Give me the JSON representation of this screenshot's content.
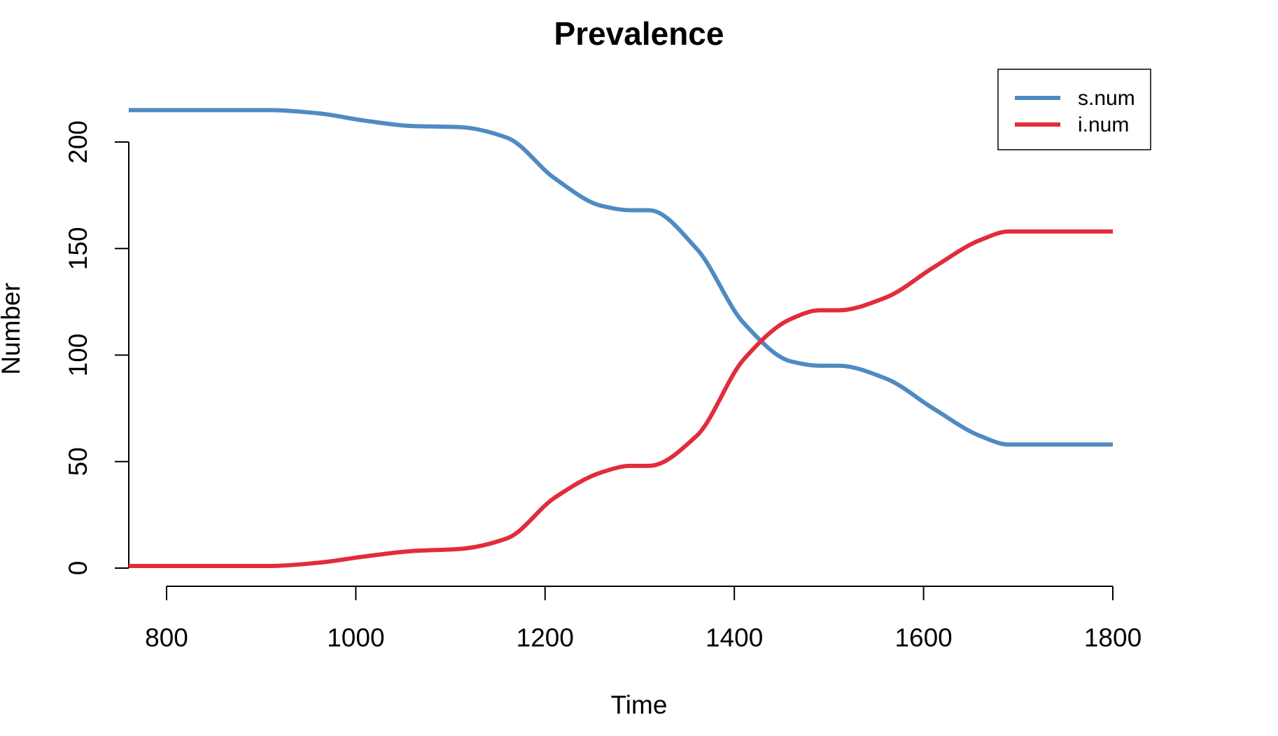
{
  "chart_data": {
    "type": "line",
    "title": "Prevalence",
    "xlabel": "Time",
    "ylabel": "Number",
    "xlim": [
      760,
      1800
    ],
    "ylim": [
      0,
      215
    ],
    "x_ticks": [
      "800",
      "1000",
      "1200",
      "1400",
      "1600",
      "1800"
    ],
    "y_ticks": [
      "0",
      "50",
      "100",
      "150",
      "200"
    ],
    "legend_position": "top-right",
    "series": [
      {
        "name": "s.num",
        "color": "#4f8bc2",
        "x": [
          760,
          810,
          910,
          960,
          1010,
          1060,
          1110,
          1160,
          1210,
          1260,
          1290,
          1310,
          1360,
          1410,
          1460,
          1490,
          1510,
          1560,
          1610,
          1660,
          1690,
          1710,
          1800
        ],
        "y": [
          215,
          215,
          215,
          213.5,
          210,
          207.5,
          207,
          202,
          183,
          170,
          168,
          168,
          150,
          115,
          97,
          95,
          95,
          89,
          75,
          62,
          58,
          58,
          58
        ]
      },
      {
        "name": "i.num",
        "color": "#e22c3b",
        "x": [
          760,
          810,
          910,
          960,
          1010,
          1060,
          1110,
          1160,
          1210,
          1260,
          1290,
          1310,
          1360,
          1410,
          1460,
          1490,
          1510,
          1560,
          1610,
          1660,
          1690,
          1710,
          1800
        ],
        "y": [
          1,
          1,
          1,
          2.5,
          5.5,
          8,
          9,
          14,
          33,
          45,
          48,
          48,
          62,
          98,
          117,
          121,
          121,
          127,
          141,
          154,
          158,
          158,
          158
        ]
      }
    ]
  }
}
